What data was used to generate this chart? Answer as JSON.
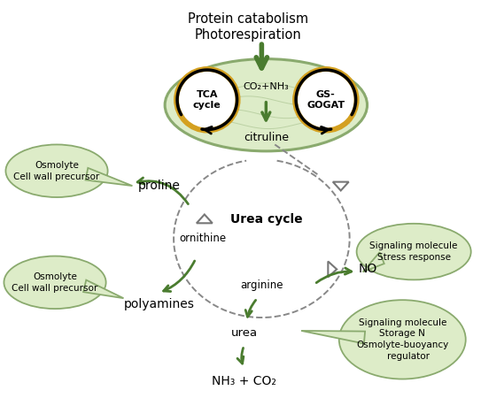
{
  "title": "Protein catabolism\nPhotorespiration",
  "background": "#ffffff",
  "mito_color": "#ddecc8",
  "mito_edge": "#8aaa6e",
  "bubble_color": "#ddecc8",
  "bubble_edge": "#8aaa6e",
  "dark_green": "#4a7c2f",
  "orange_ring": "#d4a020",
  "labels": {
    "tca": "TCA\ncycle",
    "gs_gogat": "GS-\nGOGAT",
    "co2_nh3": "CO₂+NH₃",
    "citruline": "citruline",
    "urea_cycle": "Urea cycle",
    "ornithine": "ornithine",
    "proline": "proline",
    "polyamines": "polyamines",
    "arginine": "arginine",
    "no": "NO",
    "urea": "urea",
    "nh3_co2": "NH₃ + CO₂",
    "osmolyte1": "Osmolyte\nCell wall precursor",
    "osmolyte2": "Osmolyte\nCell wall precursor",
    "signaling1": "Signaling molecule\nStress response",
    "signaling2": "Signaling molecule\nStorage N\nOsmolyte-buoyancy\n    regulator"
  }
}
